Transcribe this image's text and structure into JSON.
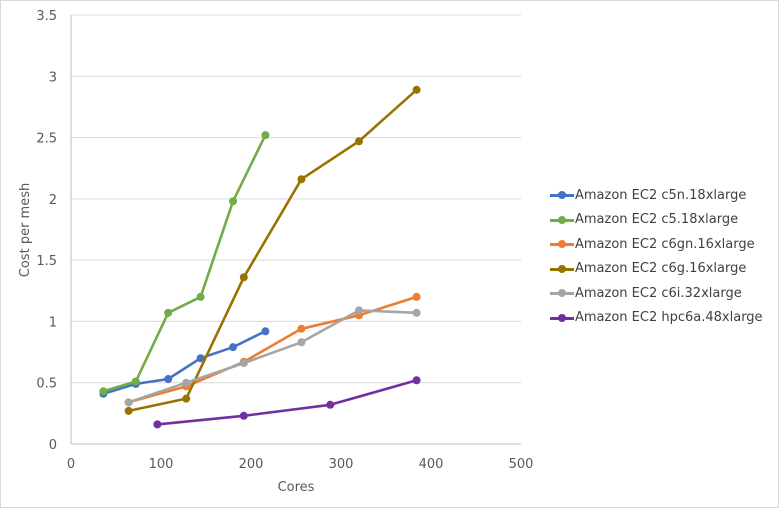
{
  "chart_data": {
    "type": "line",
    "title": "",
    "xlabel": "Cores",
    "ylabel": "Cost per mesh",
    "xlim": [
      0,
      500
    ],
    "ylim": [
      0,
      3.5
    ],
    "x_ticks": [
      "0",
      "100",
      "200",
      "300",
      "400",
      "500"
    ],
    "y_ticks": [
      "0",
      "0.5",
      "1",
      "1.5",
      "2",
      "2.5",
      "3",
      "3.5"
    ],
    "grid": "horizontal",
    "legend_position": "right",
    "series": [
      {
        "name": "Amazon EC2 c5n.18xlarge",
        "color": "#4472C4",
        "x": [
          36,
          72,
          108,
          144,
          180,
          216
        ],
        "values": [
          0.41,
          0.49,
          0.53,
          0.7,
          0.79,
          0.92
        ]
      },
      {
        "name": "Amazon EC2 c5.18xlarge",
        "color": "#70AD47",
        "x": [
          36,
          72,
          108,
          144,
          180,
          216
        ],
        "values": [
          0.43,
          0.51,
          1.07,
          1.2,
          1.98,
          2.52
        ]
      },
      {
        "name": "Amazon EC2 c6gn.16xlarge",
        "color": "#ED7D31",
        "x": [
          64,
          128,
          192,
          256,
          320,
          384
        ],
        "values": [
          0.34,
          0.47,
          0.67,
          0.94,
          1.05,
          1.2
        ]
      },
      {
        "name": "Amazon EC2 c6g.16xlarge",
        "color": "#997300",
        "x": [
          64,
          128,
          192,
          256,
          320,
          384
        ],
        "values": [
          0.27,
          0.37,
          1.36,
          2.16,
          2.47,
          2.89
        ]
      },
      {
        "name": "Amazon EC2 c6i.32xlarge",
        "color": "#A5A5A5",
        "x": [
          64,
          128,
          192,
          256,
          320,
          384
        ],
        "values": [
          0.34,
          0.5,
          0.66,
          0.83,
          1.09,
          1.07
        ]
      },
      {
        "name": "Amazon EC2 hpc6a.48xlarge",
        "color": "#7030A0",
        "x": [
          96,
          192,
          288,
          384
        ],
        "values": [
          0.16,
          0.23,
          0.32,
          0.52
        ]
      }
    ]
  }
}
